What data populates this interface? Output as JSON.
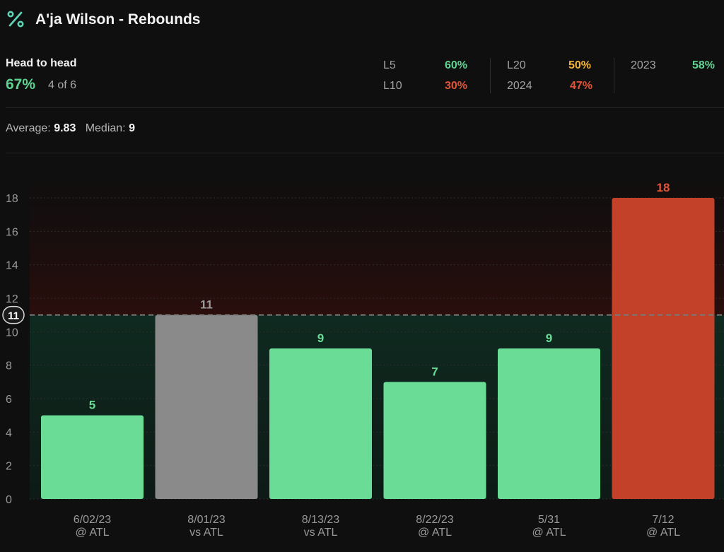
{
  "header": {
    "icon": "percent-icon",
    "title": "A'ja Wilson - Rebounds"
  },
  "head_to_head": {
    "label": "Head to head",
    "pct": "67%",
    "count": "4 of 6"
  },
  "splits": [
    {
      "label": "L5",
      "value": "60%",
      "color": "#5ed492"
    },
    {
      "label": "L10",
      "value": "30%",
      "color": "#e0553a"
    },
    {
      "label": "L20",
      "value": "50%",
      "color": "#f3b33a"
    },
    {
      "label": "2024",
      "value": "47%",
      "color": "#e0553a"
    },
    {
      "label": "2023",
      "value": "58%",
      "color": "#5ed492"
    }
  ],
  "stats": {
    "average_label": "Average:",
    "average_value": "9.83",
    "median_label": "Median:",
    "median_value": "9"
  },
  "colors": {
    "over": "#6bdc95",
    "push": "#8a8a8a",
    "under_red": "#c24128",
    "label_green": "#6bdc95",
    "label_gray": "#9a9a9a",
    "label_red": "#e0553a"
  },
  "chart_data": {
    "type": "bar",
    "categories": [
      "6/02/23\n@ ATL",
      "8/01/23\nvs ATL",
      "8/13/23\nvs ATL",
      "8/22/23\n@ ATL",
      "5/31\n@ ATL",
      "7/12\n@ ATL"
    ],
    "dates": [
      "6/02/23",
      "8/01/23",
      "8/13/23",
      "8/22/23",
      "5/31",
      "7/12"
    ],
    "opponents": [
      "@ ATL",
      "vs ATL",
      "vs ATL",
      "@ ATL",
      "@ ATL",
      "@ ATL"
    ],
    "values": [
      5,
      11,
      9,
      7,
      9,
      18
    ],
    "bar_status": [
      "green",
      "gray",
      "green",
      "green",
      "green",
      "red"
    ],
    "line": 11,
    "line_label": "11",
    "ylim": [
      0,
      18
    ],
    "yticks": [
      0,
      2,
      4,
      6,
      8,
      10,
      12,
      14,
      16,
      18
    ],
    "grid": true
  }
}
